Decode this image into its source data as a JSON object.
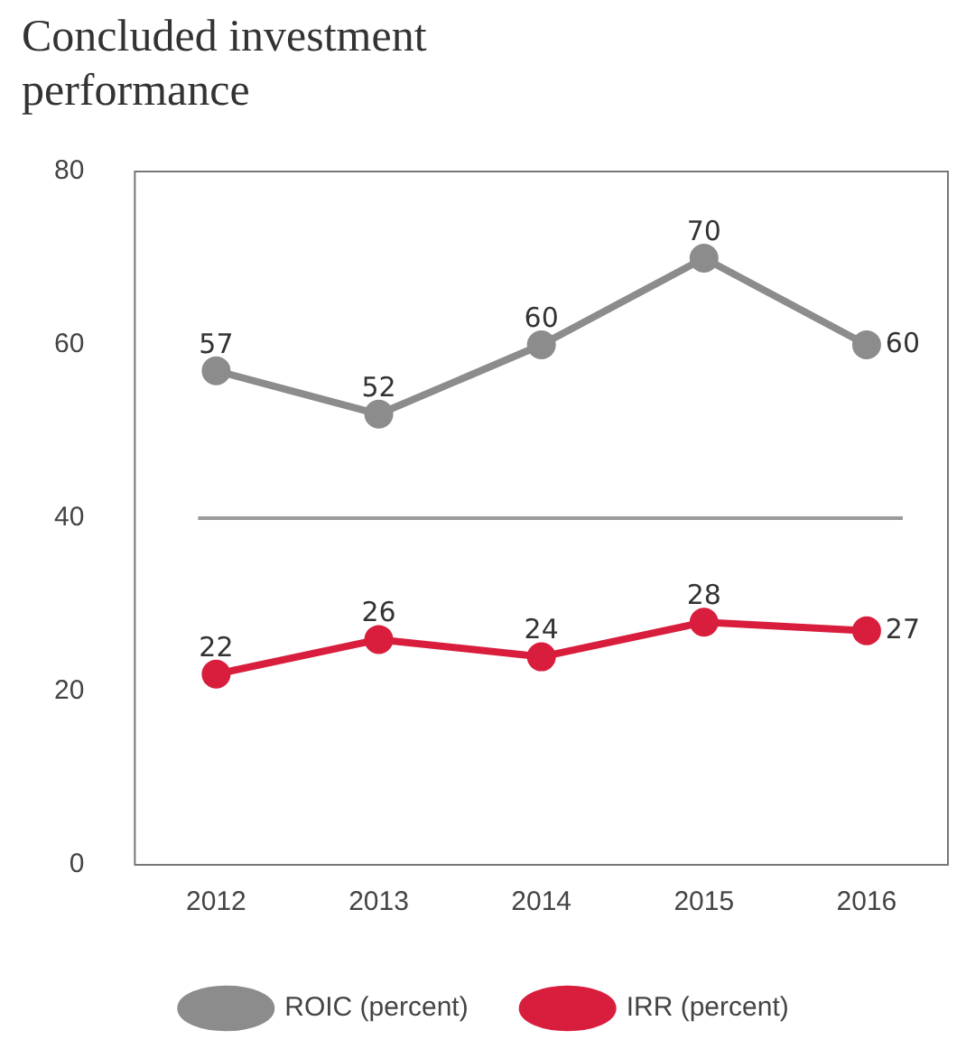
{
  "chart_data": {
    "type": "line",
    "title": "Concluded investment performance",
    "categories": [
      "2012",
      "2013",
      "2014",
      "2015",
      "2016"
    ],
    "series": [
      {
        "name": "ROIC (percent)",
        "color": "#8c8c8c",
        "values": [
          57,
          52,
          60,
          70,
          60
        ]
      },
      {
        "name": "IRR (percent)",
        "color": "#d81e3c",
        "values": [
          22,
          26,
          24,
          28,
          27
        ]
      }
    ],
    "ylim": [
      0,
      80
    ],
    "yticks": [
      0,
      20,
      40,
      60,
      80
    ],
    "ref_lines": [
      {
        "axis": "y",
        "value": 40,
        "color": "#9a9a9a"
      }
    ],
    "grid": false,
    "legend": "bottom",
    "marker": "circle",
    "line_style": "solid",
    "data_labels": true
  }
}
